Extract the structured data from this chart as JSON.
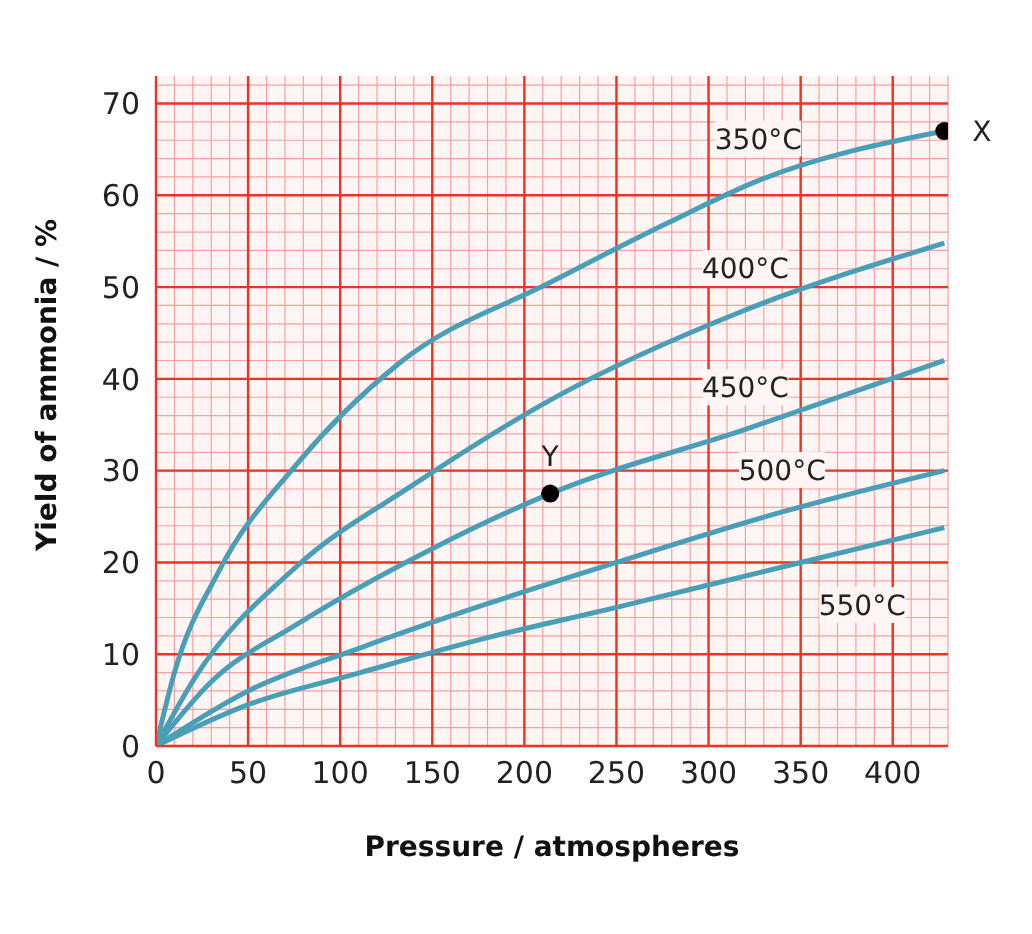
{
  "chart_data": {
    "type": "line",
    "xlabel": "Pressure / atmospheres",
    "ylabel": "Yield of ammonia / %",
    "xlim": [
      0,
      430
    ],
    "xticks": [
      0,
      50,
      100,
      150,
      200,
      250,
      300,
      350,
      400
    ],
    "ylim": [
      0,
      73
    ],
    "yticks": [
      0,
      10,
      20,
      30,
      40,
      50,
      60,
      70
    ],
    "grid": true,
    "marker": "none",
    "line_style": "solid",
    "series": [
      {
        "name": "350°C",
        "color": "#4a9fb8",
        "x": [
          0,
          10,
          34,
          76,
          132,
          215,
          278,
          327,
          428
        ],
        "values": [
          0,
          8,
          19,
          30.6,
          41.7,
          50.6,
          57,
          61.6,
          67
        ]
      },
      {
        "name": "400°C",
        "color": "#4a9fb8",
        "x": [
          0,
          21,
          76,
          140,
          215,
          320,
          428
        ],
        "values": [
          0,
          7.4,
          19.5,
          28.5,
          37.8,
          47.5,
          54.8
        ]
      },
      {
        "name": "450°C",
        "color": "#4a9fb8",
        "x": [
          0,
          30,
          76,
          150,
          214,
          320,
          428
        ],
        "values": [
          0,
          7,
          13.2,
          21.5,
          27.5,
          34.5,
          42
        ]
      },
      {
        "name": "500°C",
        "color": "#4a9fb8",
        "x": [
          0,
          50,
          111,
          180,
          250,
          340,
          428
        ],
        "values": [
          0,
          6,
          10.7,
          15.5,
          20,
          25.5,
          30
        ]
      },
      {
        "name": "550°C",
        "color": "#4a9fb8",
        "x": [
          0,
          50,
          111,
          180,
          250,
          340,
          428
        ],
        "values": [
          0,
          4.5,
          8,
          11.8,
          15.1,
          19.5,
          23.8
        ]
      },
      {
        "type": "scatter",
        "color": "#000000",
        "marker": "circle",
        "x": [
          214,
          428
        ],
        "values": [
          27.5,
          67
        ]
      }
    ],
    "annotations": [
      {
        "text": "Y",
        "x": 214,
        "y": 27.5
      },
      {
        "text": "X",
        "x": 428,
        "y": 67
      }
    ]
  }
}
